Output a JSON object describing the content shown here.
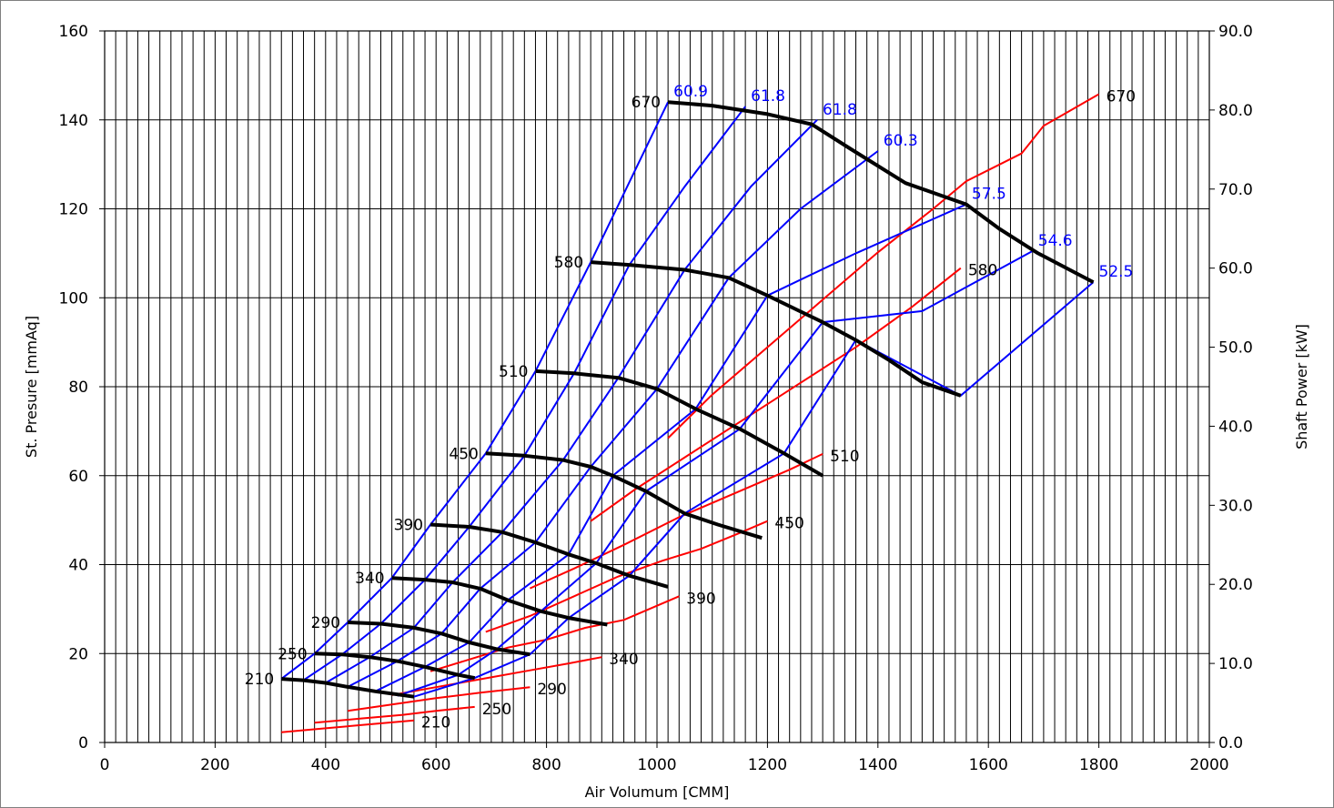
{
  "chart_data": {
    "type": "line",
    "xlabel": "Air Volumum [CMM]",
    "ylabel": "St. Presure [mmAq]",
    "y2label": "Shaft Power [kW]",
    "xlim": [
      0,
      2000
    ],
    "ylim": [
      0,
      160
    ],
    "y2lim": [
      0,
      90
    ],
    "x_ticks": [
      "0",
      "200",
      "400",
      "600",
      "800",
      "1000",
      "1200",
      "1400",
      "1600",
      "1800",
      "2000"
    ],
    "y_ticks": [
      "0",
      "20",
      "40",
      "60",
      "80",
      "100",
      "120",
      "140",
      "160"
    ],
    "y2_ticks": [
      "0.0",
      "10.0",
      "20.0",
      "30.0",
      "40.0",
      "50.0",
      "60.0",
      "70.0",
      "80.0",
      "90.0"
    ],
    "grid": "vertical lines every 20 CMM, horizontal lines every 20 mmAq",
    "colors": {
      "pressure": "#000000",
      "efficiency": "#0000ff",
      "power": "#ff0000"
    },
    "pressure_series": [
      {
        "name": "670",
        "points": [
          [
            1020,
            144
          ],
          [
            1100,
            143.2
          ],
          [
            1200,
            141.3
          ],
          [
            1280,
            139
          ],
          [
            1350,
            133.5
          ],
          [
            1450,
            125.8
          ],
          [
            1560,
            121
          ],
          [
            1620,
            115.5
          ],
          [
            1690,
            110
          ],
          [
            1790,
            103.5
          ]
        ]
      },
      {
        "name": "580",
        "points": [
          [
            880,
            108
          ],
          [
            950,
            107.4
          ],
          [
            1050,
            106.3
          ],
          [
            1130,
            104.5
          ],
          [
            1200,
            100.5
          ],
          [
            1300,
            94.5
          ],
          [
            1360,
            90.5
          ],
          [
            1420,
            86
          ],
          [
            1480,
            81
          ],
          [
            1550,
            78
          ]
        ]
      },
      {
        "name": "510",
        "points": [
          [
            780,
            83.5
          ],
          [
            850,
            83
          ],
          [
            930,
            82
          ],
          [
            1000,
            79.5
          ],
          [
            1070,
            75
          ],
          [
            1150,
            70.5
          ],
          [
            1230,
            65
          ],
          [
            1300,
            60
          ]
        ]
      },
      {
        "name": "450",
        "points": [
          [
            690,
            65
          ],
          [
            760,
            64.5
          ],
          [
            830,
            63.5
          ],
          [
            880,
            62
          ],
          [
            920,
            60
          ],
          [
            980,
            56.5
          ],
          [
            1050,
            51.5
          ],
          [
            1110,
            49
          ],
          [
            1190,
            46
          ]
        ]
      },
      {
        "name": "390",
        "points": [
          [
            590,
            49
          ],
          [
            660,
            48.5
          ],
          [
            720,
            47.3
          ],
          [
            780,
            45
          ],
          [
            840,
            42.3
          ],
          [
            890,
            40.3
          ],
          [
            950,
            37.5
          ],
          [
            1020,
            35
          ]
        ]
      },
      {
        "name": "340",
        "points": [
          [
            520,
            37
          ],
          [
            580,
            36.6
          ],
          [
            630,
            36
          ],
          [
            680,
            34.6
          ],
          [
            730,
            32
          ],
          [
            790,
            29.5
          ],
          [
            840,
            28
          ],
          [
            910,
            26.5
          ]
        ]
      },
      {
        "name": "290",
        "points": [
          [
            440,
            27
          ],
          [
            500,
            26.7
          ],
          [
            560,
            25.8
          ],
          [
            610,
            24.5
          ],
          [
            660,
            22.5
          ],
          [
            710,
            21
          ],
          [
            770,
            19.8
          ]
        ]
      },
      {
        "name": "250",
        "points": [
          [
            380,
            20
          ],
          [
            430,
            19.8
          ],
          [
            480,
            19.2
          ],
          [
            530,
            18.3
          ],
          [
            580,
            17
          ],
          [
            640,
            15.2
          ],
          [
            670,
            14.5
          ]
        ]
      },
      {
        "name": "210",
        "points": [
          [
            320,
            14.3
          ],
          [
            360,
            14
          ],
          [
            400,
            13.4
          ],
          [
            440,
            12.5
          ],
          [
            490,
            11.5
          ],
          [
            560,
            10.3
          ]
        ]
      }
    ],
    "power_series": [
      {
        "name": "670",
        "points": [
          [
            1020,
            38.5
          ],
          [
            1100,
            44
          ],
          [
            1200,
            50
          ],
          [
            1300,
            56
          ],
          [
            1400,
            62
          ],
          [
            1500,
            67.5
          ],
          [
            1560,
            71
          ],
          [
            1660,
            74.5
          ],
          [
            1700,
            78
          ],
          [
            1800,
            82
          ]
        ]
      },
      {
        "name": "580",
        "points": [
          [
            880,
            28
          ],
          [
            960,
            32
          ],
          [
            1060,
            36.5
          ],
          [
            1160,
            41
          ],
          [
            1260,
            45.5
          ],
          [
            1360,
            50
          ],
          [
            1460,
            55
          ],
          [
            1550,
            60
          ]
        ]
      },
      {
        "name": "510",
        "points": [
          [
            770,
            19.5
          ],
          [
            850,
            22
          ],
          [
            940,
            25
          ],
          [
            1040,
            28.5
          ],
          [
            1140,
            31.5
          ],
          [
            1240,
            34.5
          ],
          [
            1300,
            36.5
          ]
        ]
      },
      {
        "name": "450",
        "points": [
          [
            690,
            14
          ],
          [
            770,
            16
          ],
          [
            850,
            18.5
          ],
          [
            930,
            21
          ],
          [
            1010,
            23
          ],
          [
            1080,
            24.5
          ],
          [
            1150,
            26.5
          ],
          [
            1200,
            28
          ]
        ]
      },
      {
        "name": "390",
        "points": [
          [
            590,
            9
          ],
          [
            660,
            10.5
          ],
          [
            730,
            12
          ],
          [
            800,
            13
          ],
          [
            870,
            14.5
          ],
          [
            940,
            15.5
          ],
          [
            990,
            17
          ],
          [
            1040,
            18.5
          ]
        ]
      },
      {
        "name": "340",
        "points": [
          [
            520,
            6
          ],
          [
            600,
            7
          ],
          [
            680,
            8
          ],
          [
            760,
            9
          ],
          [
            840,
            10
          ],
          [
            900,
            10.8
          ]
        ]
      },
      {
        "name": "290",
        "points": [
          [
            440,
            4
          ],
          [
            520,
            4.8
          ],
          [
            600,
            5.6
          ],
          [
            680,
            6.3
          ],
          [
            770,
            7
          ]
        ]
      },
      {
        "name": "250",
        "points": [
          [
            380,
            2.5
          ],
          [
            460,
            3
          ],
          [
            540,
            3.5
          ],
          [
            600,
            4
          ],
          [
            670,
            4.5
          ]
        ]
      },
      {
        "name": "210",
        "points": [
          [
            320,
            1.3
          ],
          [
            400,
            1.8
          ],
          [
            480,
            2.3
          ],
          [
            560,
            2.8
          ]
        ]
      }
    ],
    "efficiency_series": [
      {
        "name": "60.9",
        "points": [
          [
            320,
            14.3
          ],
          [
            380,
            20
          ],
          [
            440,
            27
          ],
          [
            520,
            37
          ],
          [
            590,
            49
          ],
          [
            690,
            65
          ],
          [
            780,
            83.5
          ],
          [
            880,
            108
          ],
          [
            1020,
            144
          ]
        ]
      },
      {
        "name": "61.8",
        "points": [
          [
            360,
            14
          ],
          [
            430,
            19.8
          ],
          [
            500,
            26.7
          ],
          [
            580,
            36.6
          ],
          [
            660,
            48.5
          ],
          [
            760,
            64.5
          ],
          [
            850,
            83
          ],
          [
            950,
            107.4
          ],
          [
            1050,
            125
          ],
          [
            1160,
            143
          ]
        ]
      },
      {
        "name": "61.8",
        "points": [
          [
            400,
            13.4
          ],
          [
            480,
            19.2
          ],
          [
            560,
            25.8
          ],
          [
            630,
            36
          ],
          [
            720,
            47.3
          ],
          [
            830,
            63.5
          ],
          [
            930,
            82
          ],
          [
            1050,
            106.3
          ],
          [
            1170,
            125
          ],
          [
            1290,
            140
          ]
        ]
      },
      {
        "name": "60.3",
        "points": [
          [
            440,
            12.5
          ],
          [
            530,
            18.3
          ],
          [
            610,
            24.5
          ],
          [
            680,
            34.6
          ],
          [
            780,
            45
          ],
          [
            880,
            62
          ],
          [
            1000,
            79.5
          ],
          [
            1130,
            104.5
          ],
          [
            1260,
            120
          ],
          [
            1400,
            133
          ]
        ]
      },
      {
        "name": "57.5",
        "points": [
          [
            490,
            11.5
          ],
          [
            580,
            17
          ],
          [
            660,
            22.5
          ],
          [
            730,
            32
          ],
          [
            840,
            42.3
          ],
          [
            920,
            60
          ],
          [
            1070,
            75
          ],
          [
            1200,
            100.5
          ],
          [
            1360,
            110
          ],
          [
            1560,
            121
          ]
        ]
      },
      {
        "name": "54.6",
        "points": [
          [
            530,
            10.5
          ],
          [
            640,
            15.2
          ],
          [
            710,
            21
          ],
          [
            790,
            29.5
          ],
          [
            890,
            40.3
          ],
          [
            980,
            56.5
          ],
          [
            1150,
            70.5
          ],
          [
            1300,
            94.5
          ],
          [
            1480,
            97
          ],
          [
            1680,
            110.5
          ]
        ]
      },
      {
        "name": "52.5",
        "points": [
          [
            560,
            10.3
          ],
          [
            670,
            14.5
          ],
          [
            770,
            19.8
          ],
          [
            840,
            28
          ],
          [
            950,
            37.5
          ],
          [
            1050,
            51.5
          ],
          [
            1230,
            65
          ],
          [
            1360,
            90.5
          ],
          [
            1550,
            78
          ],
          [
            1790,
            103.5
          ]
        ]
      }
    ],
    "pressure_labels": [
      "670",
      "580",
      "510",
      "450",
      "390",
      "340",
      "290",
      "250",
      "210"
    ],
    "efficiency_labels": [
      "60.9",
      "61.8",
      "61.8",
      "60.3",
      "57.5",
      "54.6",
      "52.5"
    ],
    "power_labels": [
      "670",
      "580",
      "510",
      "450",
      "390",
      "340",
      "290",
      "250",
      "210"
    ]
  }
}
